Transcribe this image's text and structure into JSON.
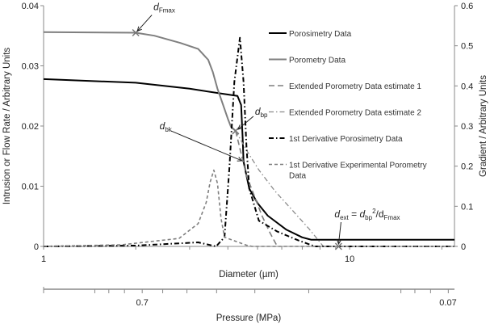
{
  "chart_data": {
    "type": "line",
    "xlabel": "Diameter (µm)",
    "xscale": "log",
    "xlim": [
      1,
      22
    ],
    "x_ticks": [
      {
        "v": 1,
        "label": "1"
      },
      {
        "v": 10,
        "label": "10"
      }
    ],
    "ylabel": "Intrusion or  Flow Rate / Arbitrary Units",
    "ylim": [
      0,
      0.04
    ],
    "y_ticks": [
      "0",
      "0.01",
      "0.02",
      "0.03",
      "0.04"
    ],
    "y_tick_values": [
      0,
      0.01,
      0.02,
      0.03,
      0.04
    ],
    "y2label": "Gradient  /  Arbitrary Units",
    "y2lim": [
      0,
      0.6
    ],
    "y2_ticks": [
      "0",
      "0.1",
      "0.2",
      "0.3",
      "0.4",
      "0.5",
      "0.6"
    ],
    "y2_tick_values": [
      0,
      0.1,
      0.2,
      0.3,
      0.4,
      0.5,
      0.6
    ],
    "secondary_xaxis": {
      "label": "Pressure (MPa)",
      "ticks": [
        {
          "d": 2.1,
          "label": "0.7"
        },
        {
          "d": 21,
          "label": "0.07"
        }
      ]
    },
    "legend_position": "top-right",
    "series": [
      {
        "name": "Porosimetry Data",
        "axis": "left",
        "color": "#000000",
        "dash": "",
        "width": 2,
        "points": [
          [
            1,
            0.0278
          ],
          [
            2,
            0.0272
          ],
          [
            3,
            0.0262
          ],
          [
            3.8,
            0.0254
          ],
          [
            4.3,
            0.025
          ],
          [
            4.42,
            0.0235
          ],
          [
            4.47,
            0.018
          ],
          [
            4.5,
            0.0141
          ],
          [
            4.7,
            0.0096
          ],
          [
            5.0,
            0.0072
          ],
          [
            5.4,
            0.0051
          ],
          [
            6.2,
            0.0028
          ],
          [
            7.0,
            0.0015
          ],
          [
            7.5,
            0.0011
          ],
          [
            22,
            0.0011
          ]
        ]
      },
      {
        "name": "Porometry Data",
        "axis": "left",
        "color": "#7f7f7f",
        "dash": "",
        "width": 2,
        "points": [
          [
            1,
            0.0356
          ],
          [
            2,
            0.0355
          ],
          [
            2.3,
            0.035
          ],
          [
            2.8,
            0.0338
          ],
          [
            3.2,
            0.0328
          ],
          [
            3.45,
            0.031
          ],
          [
            3.57,
            0.029
          ],
          [
            3.7,
            0.0262
          ],
          [
            3.83,
            0.024
          ],
          [
            4.0,
            0.0212
          ],
          [
            4.1,
            0.0198
          ],
          [
            4.24,
            0.0192
          ]
        ]
      },
      {
        "name": "Extended Porometry Data estimate 1",
        "axis": "left",
        "color": "#7f7f7f",
        "dash": "7,4",
        "width": 1.6,
        "points": [
          [
            4.24,
            0.0192
          ],
          [
            4.6,
            0.0118
          ],
          [
            5.17,
            0.0051
          ],
          [
            5.5,
            0.0022
          ],
          [
            5.8,
            0
          ]
        ]
      },
      {
        "name": "Extended Porometry Data estimate 2",
        "axis": "left",
        "color": "#8c8c8c",
        "dash": "6,3,1.5,3",
        "width": 1.3,
        "points": [
          [
            4.24,
            0.0192
          ],
          [
            4.6,
            0.016
          ],
          [
            5.05,
            0.0127
          ],
          [
            5.7,
            0.0092
          ],
          [
            6.5,
            0.006
          ],
          [
            7.4,
            0.0028
          ],
          [
            8.2,
            0
          ]
        ]
      },
      {
        "name": "1st Derivative Porosimetry Data",
        "axis": "right",
        "color": "#000000",
        "dash": "6,3,1.5,3",
        "width": 2,
        "points": [
          [
            1,
            0
          ],
          [
            2,
            0.002
          ],
          [
            3.2,
            0.01
          ],
          [
            3.66,
            0
          ],
          [
            3.9,
            0.023
          ],
          [
            4.05,
            0.2
          ],
          [
            4.2,
            0.41
          ],
          [
            4.38,
            0.52
          ],
          [
            4.5,
            0.41
          ],
          [
            4.6,
            0.25
          ],
          [
            4.7,
            0.144
          ],
          [
            5.05,
            0.064
          ],
          [
            5.8,
            0.037
          ],
          [
            6.8,
            0.015
          ],
          [
            7.7,
            0
          ],
          [
            22,
            0
          ]
        ]
      },
      {
        "name": "1st Derivative Experimental Porometry Data",
        "axis": "right",
        "color": "#7f7f7f",
        "dash": "4,3",
        "width": 1.6,
        "points": [
          [
            1,
            0
          ],
          [
            1.8,
            0.004
          ],
          [
            2.77,
            0.02
          ],
          [
            3.2,
            0.057
          ],
          [
            3.4,
            0.11
          ],
          [
            3.5,
            0.16
          ],
          [
            3.6,
            0.19
          ],
          [
            3.7,
            0.157
          ],
          [
            3.8,
            0.07
          ],
          [
            3.9,
            0.023
          ],
          [
            4.6,
            0.003
          ],
          [
            4.8,
            0
          ],
          [
            22,
            0
          ]
        ]
      }
    ],
    "annotations": [
      {
        "label": "dFmax",
        "main": "d",
        "sub": "Fmax",
        "x": 2.0,
        "y": 0.0355,
        "marker": "x"
      },
      {
        "label": "dbp",
        "main": "d",
        "sub": "bp",
        "x": 4.24,
        "y": 0.0192,
        "marker": "x"
      },
      {
        "label": "dbk",
        "main": "d",
        "sub": "bk",
        "x": 4.5,
        "y": 0.0141,
        "marker": "arrow"
      },
      {
        "label": "dext = dbp^2/dFmax",
        "main": "d",
        "sub": "ext",
        "rest": " = ",
        "x": 9.2,
        "y": 0,
        "marker": "x"
      }
    ]
  }
}
